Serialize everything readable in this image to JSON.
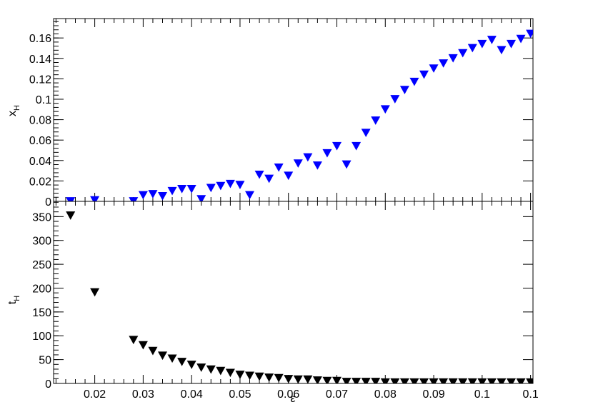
{
  "chart_data": [
    {
      "type": "scatter",
      "panel": "top",
      "ylabel": "x",
      "ylabel_sub": "H",
      "xlim": [
        0.0115,
        0.1105
      ],
      "ylim": [
        0,
        0.179
      ],
      "yticks": [
        0,
        0.02,
        0.04,
        0.06,
        0.08,
        0.1,
        0.12,
        0.14,
        0.16
      ],
      "ytick_labels": [
        "0",
        "0.02",
        "0.04",
        "0.06",
        "0.08",
        "0.1",
        "0.12",
        "0.14",
        "0.16"
      ],
      "marker": "inverted-triangle",
      "color": "#0000ff",
      "grid": false,
      "x": [
        0.015,
        0.02,
        0.028,
        0.03,
        0.032,
        0.034,
        0.036,
        0.038,
        0.04,
        0.042,
        0.044,
        0.046,
        0.048,
        0.05,
        0.052,
        0.054,
        0.056,
        0.058,
        0.06,
        0.062,
        0.064,
        0.066,
        0.068,
        0.07,
        0.072,
        0.074,
        0.076,
        0.078,
        0.08,
        0.082,
        0.084,
        0.086,
        0.088,
        0.09,
        0.092,
        0.094,
        0.096,
        0.098,
        0.1,
        0.102,
        0.104,
        0.106,
        0.108,
        0.11
      ],
      "y": [
        0.0,
        0.001,
        0.0,
        0.006,
        0.007,
        0.005,
        0.01,
        0.012,
        0.012,
        0.002,
        0.013,
        0.015,
        0.017,
        0.016,
        0.006,
        0.026,
        0.022,
        0.033,
        0.025,
        0.037,
        0.043,
        0.035,
        0.047,
        0.054,
        0.036,
        0.054,
        0.067,
        0.079,
        0.09,
        0.1,
        0.109,
        0.117,
        0.124,
        0.13,
        0.135,
        0.14,
        0.145,
        0.15,
        0.154,
        0.158,
        0.148,
        0.154,
        0.159,
        0.164
      ]
    },
    {
      "type": "scatter",
      "panel": "bottom",
      "ylabel": "t",
      "ylabel_sub": "H",
      "xlabel": "ε",
      "xlim": [
        0.0115,
        0.1105
      ],
      "ylim": [
        0,
        382
      ],
      "xticks": [
        0.02,
        0.03,
        0.04,
        0.05,
        0.06,
        0.07,
        0.08,
        0.09,
        0.1,
        0.11
      ],
      "xtick_labels": [
        "0.02",
        "0.03",
        "0.04",
        "0.05",
        "0.06",
        "0.07",
        "0.08",
        "0.09",
        "0.1",
        "0.1"
      ],
      "yticks": [
        0,
        50,
        100,
        150,
        200,
        250,
        300,
        350
      ],
      "ytick_labels": [
        "0",
        "50",
        "100",
        "150",
        "200",
        "250",
        "300",
        "350"
      ],
      "marker": "inverted-triangle",
      "color": "#000000",
      "grid": false,
      "x": [
        0.015,
        0.02,
        0.028,
        0.03,
        0.032,
        0.034,
        0.036,
        0.038,
        0.04,
        0.042,
        0.044,
        0.046,
        0.048,
        0.05,
        0.052,
        0.054,
        0.056,
        0.058,
        0.06,
        0.062,
        0.064,
        0.066,
        0.068,
        0.07,
        0.072,
        0.074,
        0.076,
        0.078,
        0.08,
        0.082,
        0.084,
        0.086,
        0.088,
        0.09,
        0.092,
        0.094,
        0.096,
        0.098,
        0.1,
        0.102,
        0.104,
        0.106,
        0.108,
        0.11
      ],
      "y": [
        352,
        191,
        91,
        80,
        68,
        58,
        52,
        45,
        39,
        33,
        29,
        26,
        22,
        18,
        16,
        14,
        12,
        11,
        9,
        8,
        8,
        6,
        5,
        5,
        3,
        3,
        3,
        3,
        2,
        2,
        2,
        2,
        2,
        2,
        2,
        2,
        2,
        2,
        2,
        2,
        2,
        2,
        2,
        2
      ]
    }
  ]
}
